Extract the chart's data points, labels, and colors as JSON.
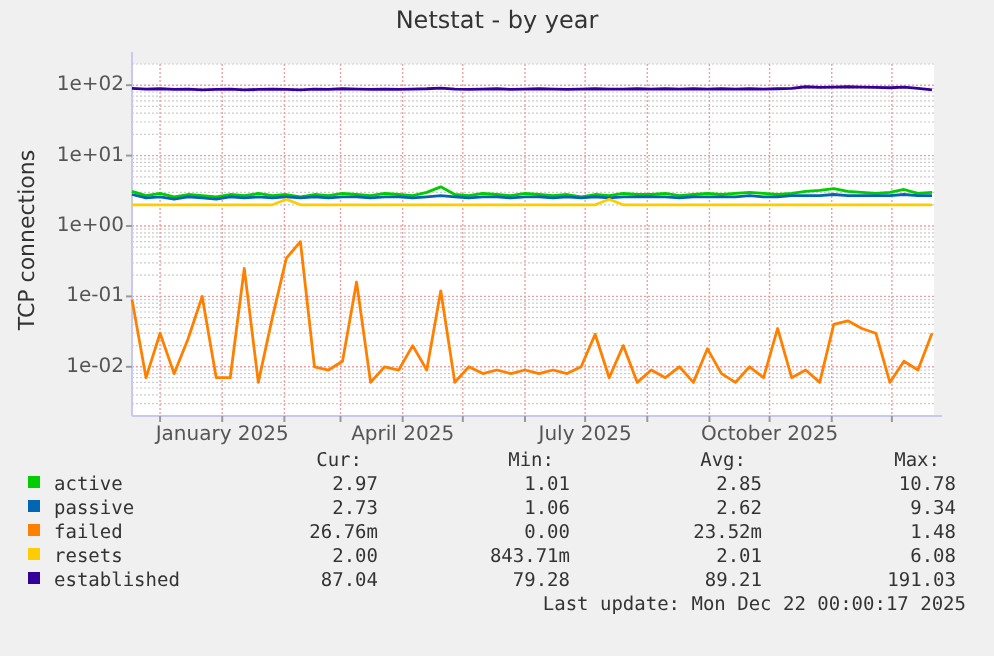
{
  "chart_data": {
    "type": "line",
    "title": "Netstat - by year",
    "ylabel": "TCP connections",
    "log": "y",
    "grid": true,
    "legend": "bottom",
    "xlim": [
      "2024-11-17",
      "2025-12-22"
    ],
    "xticks": [
      {
        "value": "2024-12-01",
        "label": null
      },
      {
        "value": "2025-01-01",
        "label": "January 2025"
      },
      {
        "value": "2025-02-01",
        "label": null
      },
      {
        "value": "2025-03-01",
        "label": null
      },
      {
        "value": "2025-04-01",
        "label": "April 2025"
      },
      {
        "value": "2025-05-01",
        "label": null
      },
      {
        "value": "2025-06-01",
        "label": null
      },
      {
        "value": "2025-07-01",
        "label": "July 2025"
      },
      {
        "value": "2025-08-01",
        "label": null
      },
      {
        "value": "2025-09-01",
        "label": null
      },
      {
        "value": "2025-10-01",
        "label": "October 2025"
      },
      {
        "value": "2025-11-01",
        "label": null
      },
      {
        "value": "2025-12-01",
        "label": null
      }
    ],
    "ylim": [
      0.002,
      200
    ],
    "yticks": [
      {
        "value": 0.01,
        "label": "1e-02"
      },
      {
        "value": 0.1,
        "label": "1e-01"
      },
      {
        "value": 1,
        "label": "1e+00"
      },
      {
        "value": 10,
        "label": "1e+01"
      },
      {
        "value": 100,
        "label": "1e+02"
      }
    ],
    "x": [
      "2024-11-17",
      "2024-11-24",
      "2024-12-01",
      "2024-12-08",
      "2024-12-15",
      "2024-12-22",
      "2024-12-29",
      "2025-01-05",
      "2025-01-12",
      "2025-01-19",
      "2025-01-26",
      "2025-02-02",
      "2025-02-09",
      "2025-02-16",
      "2025-02-23",
      "2025-03-02",
      "2025-03-09",
      "2025-03-16",
      "2025-03-23",
      "2025-03-30",
      "2025-04-06",
      "2025-04-13",
      "2025-04-20",
      "2025-04-27",
      "2025-05-04",
      "2025-05-11",
      "2025-05-18",
      "2025-05-25",
      "2025-06-01",
      "2025-06-08",
      "2025-06-15",
      "2025-06-22",
      "2025-06-29",
      "2025-07-06",
      "2025-07-13",
      "2025-07-20",
      "2025-07-27",
      "2025-08-03",
      "2025-08-10",
      "2025-08-17",
      "2025-08-24",
      "2025-08-31",
      "2025-09-07",
      "2025-09-14",
      "2025-09-21",
      "2025-09-28",
      "2025-10-05",
      "2025-10-12",
      "2025-10-19",
      "2025-10-26",
      "2025-11-02",
      "2025-11-09",
      "2025-11-16",
      "2025-11-23",
      "2025-11-30",
      "2025-12-07",
      "2025-12-14",
      "2025-12-21"
    ],
    "series": [
      {
        "name": "active",
        "color": "#00cc00",
        "values": [
          3.1,
          2.7,
          2.9,
          2.6,
          2.8,
          2.7,
          2.6,
          2.8,
          2.7,
          2.9,
          2.7,
          2.8,
          2.6,
          2.8,
          2.7,
          2.9,
          2.8,
          2.7,
          2.9,
          2.8,
          2.7,
          3.0,
          3.6,
          2.8,
          2.7,
          2.9,
          2.8,
          2.7,
          2.9,
          2.8,
          2.7,
          2.8,
          2.6,
          2.8,
          2.7,
          2.9,
          2.8,
          2.8,
          2.9,
          2.7,
          2.8,
          2.9,
          2.8,
          2.9,
          3.0,
          2.9,
          2.8,
          2.9,
          3.1,
          3.2,
          3.4,
          3.1,
          3.0,
          2.9,
          3.0,
          3.3,
          2.9,
          3.0
        ]
      },
      {
        "name": "passive",
        "color": "#0066b3",
        "values": [
          2.8,
          2.5,
          2.6,
          2.4,
          2.6,
          2.5,
          2.4,
          2.6,
          2.5,
          2.6,
          2.5,
          2.6,
          2.5,
          2.6,
          2.5,
          2.6,
          2.6,
          2.5,
          2.6,
          2.6,
          2.5,
          2.6,
          2.7,
          2.6,
          2.5,
          2.6,
          2.6,
          2.5,
          2.6,
          2.6,
          2.5,
          2.6,
          2.5,
          2.6,
          2.5,
          2.6,
          2.6,
          2.6,
          2.6,
          2.5,
          2.6,
          2.6,
          2.6,
          2.6,
          2.7,
          2.6,
          2.6,
          2.7,
          2.7,
          2.7,
          2.8,
          2.7,
          2.7,
          2.7,
          2.7,
          2.8,
          2.7,
          2.7
        ]
      },
      {
        "name": "failed",
        "color": "#ff8000",
        "values": [
          0.09,
          0.007,
          0.03,
          0.008,
          0.025,
          0.1,
          0.007,
          0.007,
          0.25,
          0.006,
          0.05,
          0.35,
          0.6,
          0.01,
          0.009,
          0.012,
          0.16,
          0.006,
          0.01,
          0.009,
          0.02,
          0.009,
          0.12,
          0.006,
          0.01,
          0.008,
          0.009,
          0.008,
          0.009,
          0.008,
          0.009,
          0.008,
          0.01,
          0.029,
          0.007,
          0.02,
          0.006,
          0.009,
          0.007,
          0.01,
          0.006,
          0.018,
          0.008,
          0.006,
          0.01,
          0.007,
          0.035,
          0.007,
          0.009,
          0.006,
          0.04,
          0.045,
          0.035,
          0.03,
          0.006,
          0.012,
          0.009,
          0.03
        ]
      },
      {
        "name": "resets",
        "color": "#ffcc00",
        "values": [
          2.0,
          2.0,
          2.0,
          2.0,
          2.0,
          2.0,
          2.0,
          2.0,
          2.0,
          2.0,
          2.0,
          2.4,
          2.0,
          2.0,
          2.0,
          2.0,
          2.0,
          2.0,
          2.0,
          2.0,
          2.0,
          2.0,
          2.0,
          2.0,
          2.0,
          2.0,
          2.0,
          2.0,
          2.0,
          2.0,
          2.0,
          2.0,
          2.0,
          2.0,
          2.4,
          2.0,
          2.0,
          2.0,
          2.0,
          2.0,
          2.0,
          2.0,
          2.0,
          2.0,
          2.0,
          2.0,
          2.0,
          2.0,
          2.0,
          2.0,
          2.0,
          2.0,
          2.0,
          2.0,
          2.0,
          2.0,
          2.0,
          2.0
        ]
      },
      {
        "name": "established",
        "color": "#330099",
        "values": [
          90,
          88,
          89,
          87,
          88,
          86,
          87,
          88,
          86,
          87,
          88,
          87,
          86,
          88,
          87,
          89,
          88,
          87,
          88,
          87,
          88,
          89,
          91,
          88,
          87,
          88,
          89,
          87,
          88,
          89,
          88,
          87,
          88,
          89,
          88,
          88,
          89,
          88,
          89,
          88,
          89,
          88,
          89,
          88,
          89,
          88,
          89,
          90,
          95,
          93,
          94,
          95,
          94,
          93,
          92,
          94,
          90,
          86
        ]
      }
    ],
    "annotations": [
      "Cur:",
      "Min:",
      "Avg:",
      "Max:",
      "2.97",
      "1.01",
      "2.85",
      "10.78",
      "2.73",
      "1.06",
      "2.62",
      "9.34",
      "26.76m",
      "0.00",
      "23.52m",
      "1.48",
      "2.00",
      "843.71m",
      "2.01",
      "6.08",
      "87.04",
      "79.28",
      "89.21",
      "191.03",
      "Last update: Mon Dec 22 00:00:17 2025"
    ]
  }
}
